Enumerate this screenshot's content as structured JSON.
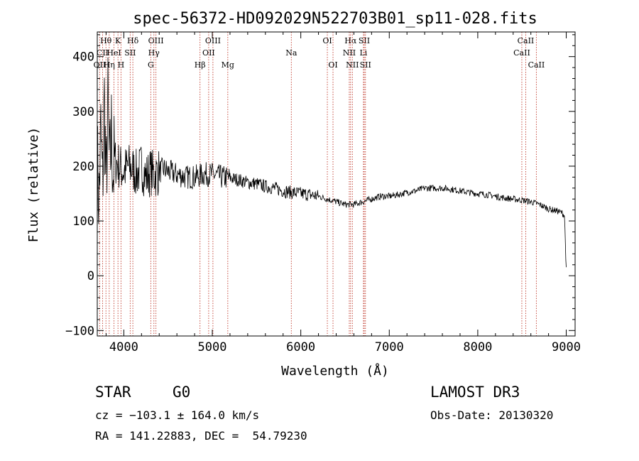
{
  "chart_data": {
    "type": "line",
    "title": "spec-56372-HD092029N522703B01_sp11-028.fits",
    "xlabel": "Wavelength (Å)",
    "ylabel": "Flux (relative)",
    "xlim": [
      3700,
      9100
    ],
    "ylim": [
      -110,
      445
    ],
    "xticks": [
      4000,
      5000,
      6000,
      7000,
      8000,
      9000
    ],
    "yticks": [
      -100,
      0,
      100,
      200,
      300,
      400
    ],
    "series": [
      {
        "name": "flux",
        "x": [
          3700,
          3720,
          3740,
          3760,
          3780,
          3800,
          3820,
          3840,
          3860,
          3880,
          3900,
          3950,
          4000,
          4050,
          4100,
          4150,
          4200,
          4250,
          4300,
          4350,
          4400,
          4450,
          4500,
          4600,
          4700,
          4800,
          4900,
          5000,
          5100,
          5200,
          5300,
          5400,
          5500,
          5600,
          5700,
          5800,
          5900,
          6000,
          6100,
          6200,
          6300,
          6400,
          6500,
          6600,
          6700,
          6800,
          6900,
          7000,
          7100,
          7200,
          7300,
          7400,
          7500,
          7600,
          7700,
          7800,
          7900,
          8000,
          8100,
          8200,
          8300,
          8400,
          8500,
          8600,
          8700,
          8800,
          8900,
          8950,
          8980,
          9000
        ],
        "y": [
          200,
          140,
          260,
          160,
          320,
          150,
          310,
          180,
          260,
          190,
          210,
          200,
          190,
          200,
          195,
          185,
          200,
          180,
          190,
          185,
          190,
          195,
          190,
          185,
          180,
          180,
          185,
          185,
          180,
          178,
          175,
          170,
          168,
          163,
          160,
          155,
          152,
          150,
          148,
          145,
          140,
          135,
          130,
          130,
          135,
          140,
          145,
          145,
          148,
          152,
          155,
          160,
          160,
          160,
          158,
          155,
          152,
          150,
          148,
          145,
          142,
          140,
          138,
          135,
          130,
          122,
          118,
          115,
          110,
          10
        ]
      }
    ],
    "line_groups": [
      {
        "label": "Hθ",
        "row": 1,
        "x": 3798
      },
      {
        "label": "K",
        "row": 1,
        "x": 3934
      },
      {
        "label": "Hδ",
        "row": 1,
        "x": 4102
      },
      {
        "label": "OIII",
        "row": 1,
        "x": 4363
      },
      {
        "label": "OIII",
        "row": 1,
        "x": 5007
      },
      {
        "label": "OI",
        "row": 1,
        "x": 6300
      },
      {
        "label": "Hα",
        "row": 1,
        "x": 6563
      },
      {
        "label": "SII",
        "row": 1,
        "x": 6717
      },
      {
        "label": "CaII",
        "row": 1,
        "x": 8542
      },
      {
        "label": "CII",
        "row": 2,
        "x": 3760
      },
      {
        "label": "HeI",
        "row": 2,
        "x": 3889
      },
      {
        "label": "SII",
        "row": 2,
        "x": 4072
      },
      {
        "label": "Hγ",
        "row": 2,
        "x": 4340
      },
      {
        "label": "OII",
        "row": 2,
        "x": 4959
      },
      {
        "label": "Na",
        "row": 2,
        "x": 5893
      },
      {
        "label": "NII",
        "row": 2,
        "x": 6548
      },
      {
        "label": "Li",
        "row": 2,
        "x": 6708
      },
      {
        "label": "CaII",
        "row": 2,
        "x": 8498
      },
      {
        "label": "OII",
        "row": 3,
        "x": 3727
      },
      {
        "label": "Hη",
        "row": 3,
        "x": 3835
      },
      {
        "label": "H",
        "row": 3,
        "x": 3968
      },
      {
        "label": "G",
        "row": 3,
        "x": 4305
      },
      {
        "label": "Hβ",
        "row": 3,
        "x": 4861
      },
      {
        "label": "Mg",
        "row": 3,
        "x": 5175
      },
      {
        "label": "OI",
        "row": 3,
        "x": 6364
      },
      {
        "label": "NII",
        "row": 3,
        "x": 6583
      },
      {
        "label": "SII",
        "row": 3,
        "x": 6731
      },
      {
        "label": "CaII",
        "row": 3,
        "x": 8662
      }
    ]
  },
  "info": {
    "object_class": "STAR",
    "subclass": "G0",
    "survey": "LAMOST DR3",
    "redshift": "cz = −103.1 ± 164.0 km/s",
    "obs_date": "Obs-Date: 20130320",
    "coordinates": "RA = 141.22883, DEC =  54.79230"
  }
}
